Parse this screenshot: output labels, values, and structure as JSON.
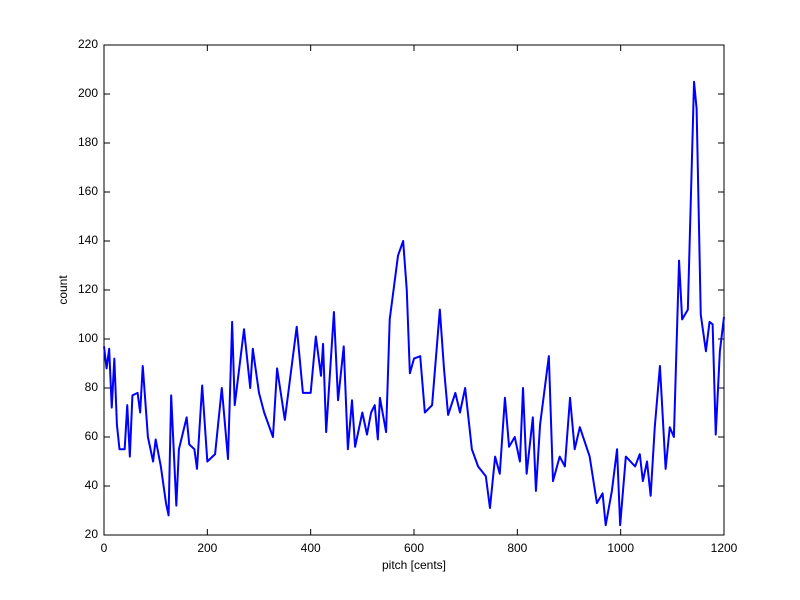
{
  "chart_data": {
    "type": "line",
    "xlabel": "pitch [cents]",
    "ylabel": "count",
    "x": [
      0,
      5,
      10,
      15,
      20,
      25,
      30,
      40,
      45,
      50,
      55,
      65,
      70,
      75,
      85,
      95,
      100,
      110,
      120,
      125,
      130,
      140,
      145,
      160,
      165,
      175,
      180,
      190,
      200,
      215,
      228,
      240,
      248,
      253,
      271,
      283,
      288,
      300,
      310,
      327,
      335,
      350,
      373,
      385,
      400,
      410,
      420,
      424,
      430,
      445,
      453,
      464,
      472,
      480,
      486,
      500,
      509,
      517,
      524,
      530,
      534,
      546,
      553,
      569,
      579,
      586,
      592,
      600,
      612,
      621,
      635,
      650,
      658,
      666,
      680,
      689,
      699,
      712,
      724,
      739,
      747,
      757,
      766,
      776,
      784,
      795,
      805,
      811,
      818,
      830,
      836,
      844,
      861,
      869,
      882,
      892,
      902,
      911,
      921,
      940,
      954,
      965,
      971,
      983,
      993,
      999,
      1010,
      1028,
      1037,
      1043,
      1051,
      1058,
      1066,
      1076,
      1087,
      1095,
      1103,
      1113,
      1119,
      1130,
      1142,
      1147,
      1155,
      1165,
      1172,
      1178,
      1184,
      1192,
      1200
    ],
    "series": [
      {
        "color": "#0000ff",
        "values": [
          97,
          88,
          96,
          72,
          92,
          65,
          55,
          55,
          73,
          52,
          77,
          78,
          70,
          89,
          60,
          50,
          59,
          48,
          33,
          28,
          77,
          32,
          55,
          68,
          57,
          55,
          47,
          81,
          50,
          53,
          80,
          51,
          107,
          73,
          104,
          80,
          96,
          78,
          70,
          60,
          88,
          67,
          105,
          78,
          78,
          101,
          85,
          98,
          62,
          111,
          75,
          97,
          55,
          75,
          56,
          70,
          61,
          70,
          73,
          59,
          76,
          62,
          108,
          134,
          140,
          120,
          86,
          92,
          93,
          70,
          73,
          112,
          88,
          69,
          78,
          70,
          80,
          55,
          48,
          44,
          31,
          52,
          45,
          76,
          56,
          60,
          50,
          80,
          45,
          68,
          38,
          65,
          93,
          42,
          52,
          48,
          76,
          55,
          64,
          52,
          33,
          37,
          24,
          38,
          55,
          24,
          52,
          48,
          53,
          42,
          50,
          36,
          64,
          89,
          47,
          64,
          60,
          132,
          108,
          112,
          205,
          194,
          110,
          95,
          107,
          106,
          61,
          95,
          109
        ]
      }
    ],
    "xlim": [
      0,
      1200
    ],
    "xticks": [
      0,
      200,
      400,
      600,
      800,
      1000,
      1200
    ],
    "ylim": [
      20,
      220
    ],
    "yticks": [
      20,
      40,
      60,
      80,
      100,
      120,
      140,
      160,
      180,
      200,
      220
    ]
  }
}
